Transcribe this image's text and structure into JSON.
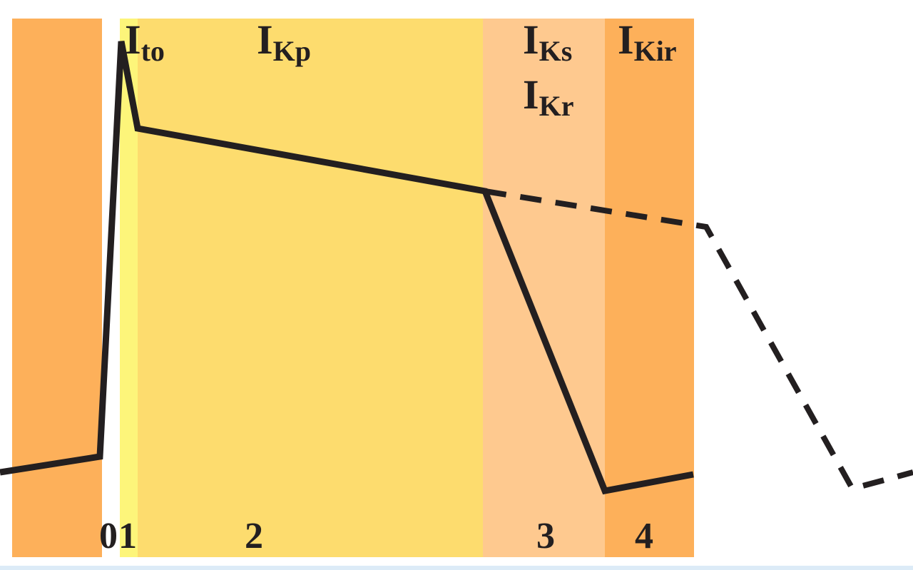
{
  "colors": {
    "phase4_rest": "#fdb05a",
    "phase1": "#fdf57a",
    "phase2": "#fddc6e",
    "phase3": "#fec98f",
    "phase4": "#fdb05a",
    "line": "#231f20"
  },
  "currents": [
    {
      "main": "I",
      "sub": "to"
    },
    {
      "main": "I",
      "sub": "Kp"
    },
    {
      "main": "I",
      "sub": "Ks"
    },
    {
      "main": "I",
      "sub": "Kr"
    },
    {
      "main": "I",
      "sub": "Kir"
    }
  ],
  "phases": [
    "0",
    "1",
    "2",
    "3",
    "4"
  ],
  "traces": {
    "solid": "action potential",
    "dashed": "prolonged action potential"
  }
}
